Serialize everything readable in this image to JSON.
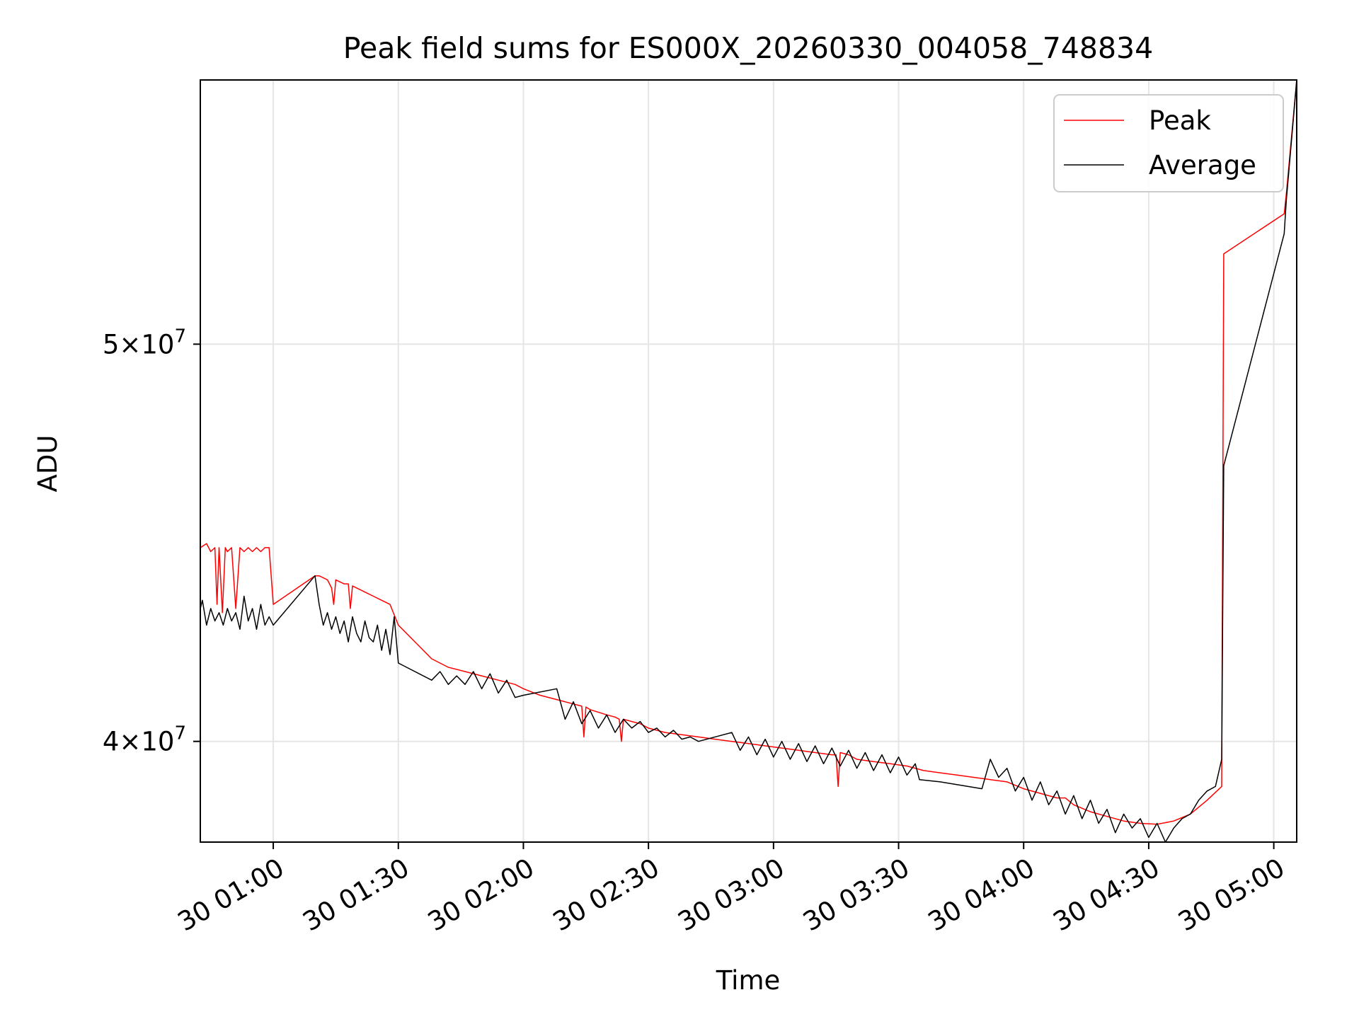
{
  "chart_data": {
    "type": "line",
    "title": "Peak field sums for ES000X_20260330_004058_748834",
    "xlabel": "Time",
    "ylabel": "ADU",
    "yscale": "log",
    "xlim": [
      42.5,
      305.5
    ],
    "ylim": [
      37800000,
      58000000
    ],
    "grid": true,
    "legend_position": "top-right",
    "x_ticks": [
      {
        "value": 60,
        "label": "30 01:00"
      },
      {
        "value": 90,
        "label": "30 01:30"
      },
      {
        "value": 120,
        "label": "30 02:00"
      },
      {
        "value": 150,
        "label": "30 02:30"
      },
      {
        "value": 180,
        "label": "30 03:00"
      },
      {
        "value": 210,
        "label": "30 03:30"
      },
      {
        "value": 240,
        "label": "30 04:00"
      },
      {
        "value": 270,
        "label": "30 04:30"
      },
      {
        "value": 300,
        "label": "30 05:00"
      }
    ],
    "y_ticks": [
      {
        "value": 40000000,
        "mant": "4",
        "exp": "7"
      },
      {
        "value": 50000000,
        "mant": "5",
        "exp": "7"
      }
    ],
    "series": [
      {
        "name": "Peak",
        "color": "#ff0000",
        "points": [
          [
            42.5,
            44600000
          ],
          [
            44,
            44700000
          ],
          [
            45,
            44500000
          ],
          [
            46,
            44600000
          ],
          [
            46.5,
            43200000
          ],
          [
            47,
            44600000
          ],
          [
            47.8,
            43000000
          ],
          [
            48.5,
            44600000
          ],
          [
            49,
            44500000
          ],
          [
            50,
            44600000
          ],
          [
            51,
            43100000
          ],
          [
            52,
            44600000
          ],
          [
            53,
            44500000
          ],
          [
            54,
            44600000
          ],
          [
            55,
            44500000
          ],
          [
            56,
            44600000
          ],
          [
            57,
            44500000
          ],
          [
            58,
            44600000
          ],
          [
            59,
            44600000
          ],
          [
            60,
            43200000
          ],
          [
            70,
            43900000
          ],
          [
            71,
            43900000
          ],
          [
            72,
            43850000
          ],
          [
            73,
            43800000
          ],
          [
            74,
            43600000
          ],
          [
            74.5,
            43200000
          ],
          [
            75,
            43800000
          ],
          [
            76,
            43750000
          ],
          [
            77,
            43700000
          ],
          [
            78,
            43700000
          ],
          [
            78.5,
            43100000
          ],
          [
            79,
            43650000
          ],
          [
            80,
            43600000
          ],
          [
            82,
            43500000
          ],
          [
            84,
            43400000
          ],
          [
            86,
            43300000
          ],
          [
            88,
            43200000
          ],
          [
            90,
            42700000
          ],
          [
            94,
            42300000
          ],
          [
            98,
            41900000
          ],
          [
            102,
            41700000
          ],
          [
            106,
            41600000
          ],
          [
            110,
            41500000
          ],
          [
            114,
            41400000
          ],
          [
            118,
            41300000
          ],
          [
            120,
            41200000
          ],
          [
            124,
            41050000
          ],
          [
            128,
            40950000
          ],
          [
            132,
            40850000
          ],
          [
            134,
            40800000
          ],
          [
            134.5,
            40100000
          ],
          [
            135,
            40780000
          ],
          [
            136,
            40720000
          ],
          [
            140,
            40600000
          ],
          [
            142,
            40550000
          ],
          [
            143,
            40500000
          ],
          [
            143.5,
            40000000
          ],
          [
            144,
            40500000
          ],
          [
            146,
            40450000
          ],
          [
            148,
            40400000
          ],
          [
            150,
            40300000
          ],
          [
            154,
            40200000
          ],
          [
            158,
            40150000
          ],
          [
            162,
            40100000
          ],
          [
            166,
            40050000
          ],
          [
            170,
            40000000
          ],
          [
            174,
            39950000
          ],
          [
            178,
            39900000
          ],
          [
            182,
            39850000
          ],
          [
            186,
            39800000
          ],
          [
            190,
            39750000
          ],
          [
            194,
            39700000
          ],
          [
            195,
            39700000
          ],
          [
            195.5,
            39000000
          ],
          [
            196,
            39750000
          ],
          [
            198,
            39700000
          ],
          [
            200,
            39600000
          ],
          [
            204,
            39550000
          ],
          [
            208,
            39500000
          ],
          [
            212,
            39450000
          ],
          [
            216,
            39350000
          ],
          [
            220,
            39300000
          ],
          [
            224,
            39250000
          ],
          [
            228,
            39200000
          ],
          [
            232,
            39150000
          ],
          [
            236,
            39100000
          ],
          [
            240,
            38950000
          ],
          [
            244,
            38850000
          ],
          [
            248,
            38750000
          ],
          [
            250,
            38750000
          ],
          [
            252,
            38600000
          ],
          [
            256,
            38450000
          ],
          [
            260,
            38350000
          ],
          [
            264,
            38250000
          ],
          [
            268,
            38200000
          ],
          [
            272,
            38180000
          ],
          [
            276,
            38250000
          ],
          [
            280,
            38400000
          ],
          [
            284,
            38700000
          ],
          [
            287.5,
            39000000
          ],
          [
            288,
            52600000
          ],
          [
            302.5,
            53800000
          ],
          [
            303,
            54400000
          ],
          [
            305.5,
            58000000
          ]
        ]
      },
      {
        "name": "Average",
        "color": "#000000",
        "points": [
          [
            42.5,
            43100000
          ],
          [
            43,
            43300000
          ],
          [
            44,
            42700000
          ],
          [
            45,
            43100000
          ],
          [
            46,
            42800000
          ],
          [
            47,
            43000000
          ],
          [
            48,
            42700000
          ],
          [
            49,
            43100000
          ],
          [
            50,
            42800000
          ],
          [
            51,
            43000000
          ],
          [
            52,
            42600000
          ],
          [
            53,
            43400000
          ],
          [
            54,
            42800000
          ],
          [
            55,
            43100000
          ],
          [
            56,
            42600000
          ],
          [
            57,
            43200000
          ],
          [
            58,
            42700000
          ],
          [
            59,
            42900000
          ],
          [
            60,
            42700000
          ],
          [
            70,
            43900000
          ],
          [
            71,
            43200000
          ],
          [
            72,
            42700000
          ],
          [
            73,
            43000000
          ],
          [
            74,
            42600000
          ],
          [
            75,
            42900000
          ],
          [
            76,
            42500000
          ],
          [
            77,
            42800000
          ],
          [
            78,
            42300000
          ],
          [
            79,
            42900000
          ],
          [
            80,
            42500000
          ],
          [
            81,
            42300000
          ],
          [
            82,
            42800000
          ],
          [
            83,
            42400000
          ],
          [
            84,
            42300000
          ],
          [
            85,
            42700000
          ],
          [
            86,
            42100000
          ],
          [
            87,
            42600000
          ],
          [
            88,
            42000000
          ],
          [
            89,
            42900000
          ],
          [
            90,
            41800000
          ],
          [
            98,
            41400000
          ],
          [
            100,
            41600000
          ],
          [
            102,
            41300000
          ],
          [
            104,
            41500000
          ],
          [
            106,
            41300000
          ],
          [
            108,
            41600000
          ],
          [
            110,
            41200000
          ],
          [
            112,
            41550000
          ],
          [
            114,
            41100000
          ],
          [
            116,
            41400000
          ],
          [
            118,
            41000000
          ],
          [
            120,
            41050000
          ],
          [
            128,
            41200000
          ],
          [
            130,
            40500000
          ],
          [
            132,
            40900000
          ],
          [
            134,
            40400000
          ],
          [
            136,
            40700000
          ],
          [
            138,
            40300000
          ],
          [
            140,
            40600000
          ],
          [
            142,
            40200000
          ],
          [
            144,
            40500000
          ],
          [
            146,
            40300000
          ],
          [
            148,
            40450000
          ],
          [
            150,
            40200000
          ],
          [
            152,
            40300000
          ],
          [
            154,
            40100000
          ],
          [
            156,
            40250000
          ],
          [
            158,
            40050000
          ],
          [
            160,
            40100000
          ],
          [
            162,
            40000000
          ],
          [
            170,
            40200000
          ],
          [
            172,
            39800000
          ],
          [
            174,
            40100000
          ],
          [
            176,
            39700000
          ],
          [
            178,
            40050000
          ],
          [
            180,
            39650000
          ],
          [
            182,
            40000000
          ],
          [
            184,
            39600000
          ],
          [
            186,
            39950000
          ],
          [
            188,
            39550000
          ],
          [
            190,
            39900000
          ],
          [
            192,
            39500000
          ],
          [
            194,
            39850000
          ],
          [
            196,
            39450000
          ],
          [
            198,
            39800000
          ],
          [
            200,
            39400000
          ],
          [
            202,
            39750000
          ],
          [
            204,
            39350000
          ],
          [
            206,
            39700000
          ],
          [
            208,
            39300000
          ],
          [
            210,
            39650000
          ],
          [
            212,
            39250000
          ],
          [
            214,
            39500000
          ],
          [
            215,
            39150000
          ],
          [
            220,
            39100000
          ],
          [
            230,
            38950000
          ],
          [
            232,
            39600000
          ],
          [
            234,
            39200000
          ],
          [
            236,
            39400000
          ],
          [
            238,
            38900000
          ],
          [
            240,
            39200000
          ],
          [
            242,
            38700000
          ],
          [
            244,
            39100000
          ],
          [
            246,
            38600000
          ],
          [
            248,
            38900000
          ],
          [
            250,
            38400000
          ],
          [
            252,
            38800000
          ],
          [
            254,
            38300000
          ],
          [
            256,
            38700000
          ],
          [
            258,
            38200000
          ],
          [
            260,
            38500000
          ],
          [
            262,
            38000000
          ],
          [
            264,
            38400000
          ],
          [
            266,
            38100000
          ],
          [
            268,
            38300000
          ],
          [
            270,
            37900000
          ],
          [
            272,
            38200000
          ],
          [
            274,
            37800000
          ],
          [
            276,
            38100000
          ],
          [
            278,
            38300000
          ],
          [
            280,
            38400000
          ],
          [
            282,
            38700000
          ],
          [
            284,
            38900000
          ],
          [
            286,
            39000000
          ],
          [
            287.5,
            39600000
          ],
          [
            288,
            46700000
          ],
          [
            302.5,
            53200000
          ],
          [
            303,
            54200000
          ],
          [
            305.5,
            58000000
          ]
        ]
      }
    ]
  }
}
